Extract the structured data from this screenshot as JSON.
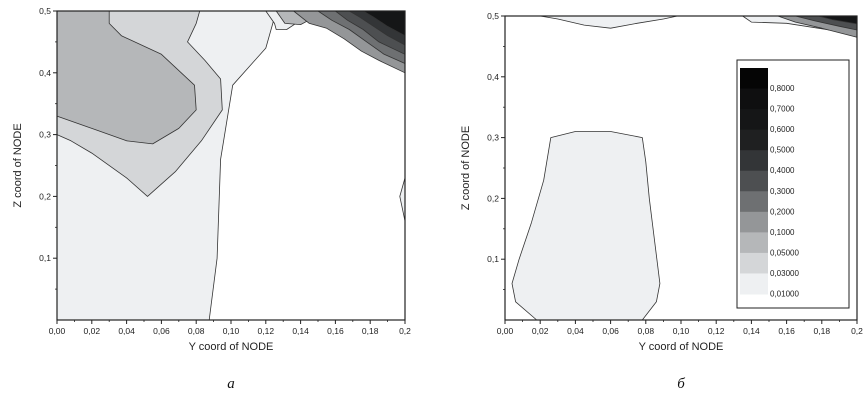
{
  "chart_data": [
    {
      "type": "contour",
      "panel_label": "а",
      "xlabel": "Y coord of NODE",
      "ylabel": "Z coord of NODE",
      "xlim": [
        0.0,
        0.2
      ],
      "ylim": [
        0.0,
        0.5
      ],
      "x_ticks": [
        "0,00",
        "0,02",
        "0,04",
        "0,06",
        "0,08",
        "0,10",
        "0,12",
        "0,14",
        "0,16",
        "0,18",
        "0,2"
      ],
      "y_ticks": [
        "0,1",
        "0,2",
        "0,3",
        "0,4",
        "0,5"
      ],
      "regions": [
        {
          "level": 0.01,
          "color": "#eef0f2",
          "points": [
            [
              0,
              0
            ],
            [
              0.0875,
              0
            ],
            [
              0.092,
              0.1
            ],
            [
              0.094,
              0.26
            ],
            [
              0.101,
              0.38
            ],
            [
              0.12,
              0.44
            ],
            [
              0.124,
              0.48
            ],
            [
              0.126,
              0.5
            ],
            [
              0,
              0.5
            ]
          ]
        },
        {
          "level": 0.03,
          "color": "#d4d6d8",
          "points": [
            [
              0,
              0.3
            ],
            [
              0.008,
              0.29
            ],
            [
              0.02,
              0.27
            ],
            [
              0.04,
              0.23
            ],
            [
              0.052,
              0.2
            ],
            [
              0.068,
              0.24
            ],
            [
              0.083,
              0.29
            ],
            [
              0.095,
              0.34
            ],
            [
              0.094,
              0.39
            ],
            [
              0.085,
              0.42
            ],
            [
              0.075,
              0.45
            ],
            [
              0.08,
              0.48
            ],
            [
              0.082,
              0.5
            ],
            [
              0,
              0.5
            ]
          ]
        },
        {
          "level": 0.05,
          "color": "#b5b7b9",
          "points": [
            [
              0,
              0.33
            ],
            [
              0.02,
              0.31
            ],
            [
              0.04,
              0.29
            ],
            [
              0.055,
              0.285
            ],
            [
              0.07,
              0.31
            ],
            [
              0.08,
              0.34
            ],
            [
              0.079,
              0.38
            ],
            [
              0.06,
              0.43
            ],
            [
              0.037,
              0.46
            ],
            [
              0.03,
              0.48
            ],
            [
              0.03,
              0.5
            ],
            [
              0,
              0.5
            ]
          ]
        },
        {
          "level": 0.01,
          "color": "#eef0f2",
          "points": [
            [
              0.2,
              0.16
            ],
            [
              0.197,
              0.2
            ],
            [
              0.2,
              0.23
            ]
          ]
        },
        {
          "level": 0.01,
          "color": "#eef0f2",
          "points": [
            [
              0.12,
              0.5
            ],
            [
              0.125,
              0.48
            ],
            [
              0.126,
              0.47
            ],
            [
              0.132,
              0.47
            ],
            [
              0.14,
              0.485
            ],
            [
              0.145,
              0.5
            ]
          ]
        },
        {
          "level": 0.05,
          "color": "#b5b7b9",
          "points": [
            [
              0.126,
              0.5
            ],
            [
              0.131,
              0.48
            ],
            [
              0.14,
              0.478
            ],
            [
              0.148,
              0.49
            ],
            [
              0.154,
              0.5
            ]
          ]
        },
        {
          "level": 0.1,
          "color": "#949698",
          "points": [
            [
              0.136,
              0.5
            ],
            [
              0.145,
              0.48
            ],
            [
              0.155,
              0.472
            ],
            [
              0.165,
              0.455
            ],
            [
              0.175,
              0.435
            ],
            [
              0.185,
              0.42
            ],
            [
              0.2,
              0.4
            ],
            [
              0.2,
              0.5
            ]
          ]
        },
        {
          "level": 0.2,
          "color": "#6e7072",
          "points": [
            [
              0.15,
              0.5
            ],
            [
              0.158,
              0.485
            ],
            [
              0.168,
              0.47
            ],
            [
              0.178,
              0.45
            ],
            [
              0.188,
              0.43
            ],
            [
              0.2,
              0.415
            ],
            [
              0.2,
              0.5
            ]
          ]
        },
        {
          "level": 0.3,
          "color": "#4d4f51",
          "points": [
            [
              0.16,
              0.5
            ],
            [
              0.167,
              0.485
            ],
            [
              0.176,
              0.47
            ],
            [
              0.185,
              0.45
            ],
            [
              0.2,
              0.43
            ],
            [
              0.2,
              0.5
            ]
          ]
        },
        {
          "level": 0.4,
          "color": "#333537",
          "points": [
            [
              0.168,
              0.5
            ],
            [
              0.174,
              0.49
            ],
            [
              0.182,
              0.475
            ],
            [
              0.19,
              0.46
            ],
            [
              0.2,
              0.445
            ],
            [
              0.2,
              0.5
            ]
          ]
        },
        {
          "level": 0.6,
          "color": "#151617",
          "points": [
            [
              0.176,
              0.5
            ],
            [
              0.182,
              0.49
            ],
            [
              0.19,
              0.475
            ],
            [
              0.2,
              0.46
            ],
            [
              0.2,
              0.5
            ]
          ]
        }
      ]
    },
    {
      "type": "contour",
      "panel_label": "б",
      "xlabel": "Y coord of NODE",
      "ylabel": "Z coord of NODE",
      "xlim": [
        0.0,
        0.2
      ],
      "ylim": [
        0.0,
        0.5
      ],
      "x_ticks": [
        "0,00",
        "0,02",
        "0,04",
        "0,06",
        "0,08",
        "0,10",
        "0,12",
        "0,14",
        "0,16",
        "0,18",
        "0,2"
      ],
      "y_ticks": [
        "0,1",
        "0,2",
        "0,3",
        "0,4",
        "0,5"
      ],
      "regions": [
        {
          "level": 0.01,
          "color": "#eef0f2",
          "points": [
            [
              0.018,
              0
            ],
            [
              0.006,
              0.03
            ],
            [
              0.004,
              0.06
            ],
            [
              0.008,
              0.1
            ],
            [
              0.015,
              0.16
            ],
            [
              0.022,
              0.23
            ],
            [
              0.026,
              0.3
            ],
            [
              0.04,
              0.31
            ],
            [
              0.06,
              0.31
            ],
            [
              0.078,
              0.3
            ],
            [
              0.08,
              0.26
            ],
            [
              0.082,
              0.2
            ],
            [
              0.085,
              0.13
            ],
            [
              0.088,
              0.06
            ],
            [
              0.086,
              0.03
            ],
            [
              0.078,
              0
            ]
          ]
        },
        {
          "level": 0.01,
          "color": "#eef0f2",
          "points": [
            [
              0.02,
              0.5
            ],
            [
              0.03,
              0.495
            ],
            [
              0.045,
              0.485
            ],
            [
              0.06,
              0.48
            ],
            [
              0.075,
              0.488
            ],
            [
              0.09,
              0.495
            ],
            [
              0.098,
              0.5
            ]
          ]
        },
        {
          "level": 0.01,
          "color": "#eef0f2",
          "points": [
            [
              0.135,
              0.5
            ],
            [
              0.14,
              0.49
            ],
            [
              0.16,
              0.488
            ],
            [
              0.2,
              0.47
            ],
            [
              0.2,
              0.5
            ]
          ]
        },
        {
          "level": 0.1,
          "color": "#949698",
          "points": [
            [
              0.155,
              0.5
            ],
            [
              0.165,
              0.49
            ],
            [
              0.18,
              0.48
            ],
            [
              0.2,
              0.465
            ],
            [
              0.2,
              0.5
            ]
          ]
        },
        {
          "level": 0.3,
          "color": "#4d4f51",
          "points": [
            [
              0.165,
              0.5
            ],
            [
              0.176,
              0.492
            ],
            [
              0.19,
              0.483
            ],
            [
              0.2,
              0.477
            ],
            [
              0.2,
              0.5
            ]
          ]
        },
        {
          "level": 0.6,
          "color": "#151617",
          "points": [
            [
              0.178,
              0.5
            ],
            [
              0.186,
              0.494
            ],
            [
              0.2,
              0.487
            ],
            [
              0.2,
              0.5
            ]
          ]
        }
      ],
      "legend": {
        "placement": "right",
        "entries": [
          {
            "label": "0,8000",
            "color": "#050505"
          },
          {
            "label": "0,7000",
            "color": "#0f0f10"
          },
          {
            "label": "0,6000",
            "color": "#151617"
          },
          {
            "label": "0,5000",
            "color": "#1f2021"
          },
          {
            "label": "0,4000",
            "color": "#333537"
          },
          {
            "label": "0,3000",
            "color": "#4d4f51"
          },
          {
            "label": "0,2000",
            "color": "#6e7072"
          },
          {
            "label": "0,1000",
            "color": "#949698"
          },
          {
            "label": "0,05000",
            "color": "#b5b7b9"
          },
          {
            "label": "0,03000",
            "color": "#d4d6d8"
          },
          {
            "label": "0,01000",
            "color": "#eef0f2"
          }
        ]
      }
    }
  ]
}
